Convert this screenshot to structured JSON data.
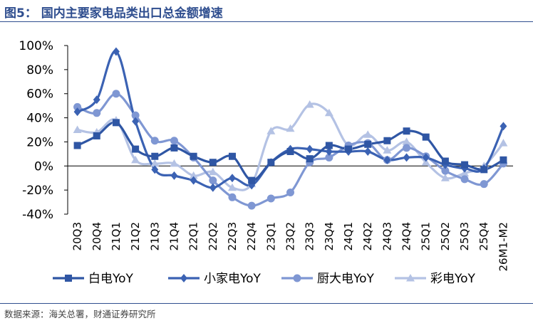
{
  "figure": {
    "title": "图5：  国内主要家电品类出口总金额增速",
    "source": "数据来源：海关总署，财通证券研究所"
  },
  "chart_data": {
    "type": "line",
    "categories": [
      "20Q3",
      "20Q4",
      "21Q1",
      "21Q2",
      "21Q3",
      "21Q4",
      "22Q1",
      "22Q2",
      "22Q3",
      "22Q4",
      "23Q1",
      "23Q2",
      "23Q3",
      "23Q4",
      "24Q1",
      "24Q2",
      "24Q3",
      "24Q4",
      "25Q1",
      "25Q2",
      "25Q3",
      "25Q4",
      "26M1-M2"
    ],
    "ylim": [
      -40,
      100
    ],
    "yticks": [
      -40,
      -20,
      0,
      20,
      40,
      60,
      80,
      100
    ],
    "ytick_labels": [
      "-40%",
      "-20%",
      "0%",
      "20%",
      "40%",
      "60%",
      "80%",
      "100%"
    ],
    "legend_position": "bottom",
    "grid": false,
    "series": [
      {
        "name": "白电YoY",
        "color": "#2f56a4",
        "marker": "square",
        "values": [
          17,
          25,
          36,
          14,
          8,
          15,
          8,
          3,
          8,
          -12,
          3,
          12,
          6,
          17,
          14,
          18,
          21,
          29,
          24,
          4,
          1,
          -3,
          5
        ]
      },
      {
        "name": "小家电YoY",
        "color": "#3b62b3",
        "marker": "diamond",
        "values": [
          45,
          55,
          95,
          37,
          -3,
          -8,
          -12,
          -18,
          -10,
          -16,
          3,
          14,
          14,
          12,
          12,
          12,
          5,
          7,
          7,
          1,
          -2,
          -2,
          33
        ]
      },
      {
        "name": "厨大电YoY",
        "color": "#7f97d3",
        "marker": "circle",
        "values": [
          49,
          44,
          60,
          42,
          21,
          21,
          7,
          -12,
          -26,
          -33,
          -27,
          -22,
          3,
          7,
          17,
          19,
          5,
          15,
          8,
          -4,
          -11,
          -15,
          2
        ]
      },
      {
        "name": "彩电YoY",
        "color": "#b4c2e4",
        "marker": "triangle",
        "values": [
          30,
          28,
          38,
          5,
          2,
          2,
          -8,
          -5,
          -18,
          -15,
          29,
          31,
          51,
          44,
          17,
          26,
          13,
          20,
          3,
          -10,
          -6,
          0,
          19
        ]
      }
    ]
  }
}
